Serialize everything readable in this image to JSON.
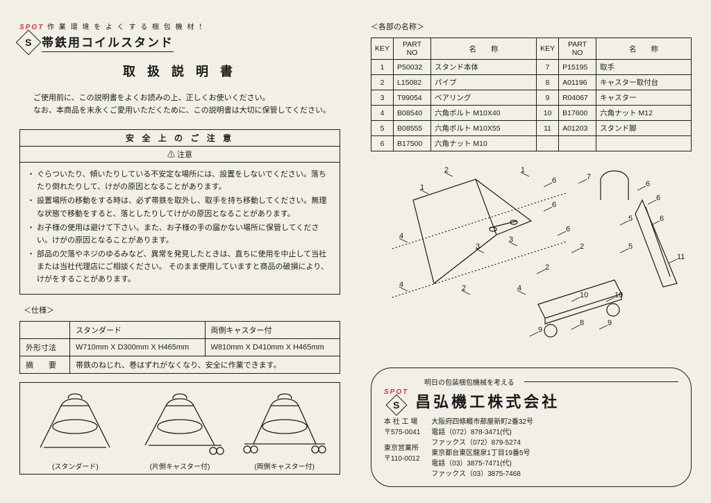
{
  "left": {
    "spot_label": "SPOT",
    "spot_tagline": "作 業 環 境 を よ く す る 梱 包 機 材 ！",
    "logo_letter": "S",
    "product_title": "帯鉄用コイルスタンド",
    "manual_title": "取 扱 説 明 書",
    "intro_line1": "ご使用前に、この説明書をよくお読みの上、正しくお使いください。",
    "intro_line2": "なお、本商品を末永くご愛用いただくために、この説明書は大切に保管してください。",
    "safety_header": "安 全 上 の ご 注 意",
    "safety_sub": "⚠ 注意",
    "safety_items": [
      "ぐらついたり、傾いたりしている不安定な場所には、設置をしないでください。落ちたり倒れたりして、けがの原因となることがあります。",
      "設置場所の移動をする時は、必ず帯鉄を取外し、取手を持ち移動してください。無理な状態で移動をすると、落としたりしてけがの原因となることがあります。",
      "お子様の使用は避けて下さい。また、お子様の手の届かない場所に保管してください。けがの原因となることがあります。",
      "部品の欠落やネジのゆるみなど、異常を発見したときは、直ちに使用を中止して当社または当社代理店にご相談ください。\nそのまま使用していますと商品の破損により、けがをすることがあります。"
    ],
    "spec_label": "＜仕様＞",
    "spec": {
      "cols": [
        "",
        "スタンダード",
        "両側キャスター付"
      ],
      "row1": [
        "外形寸法",
        "W710mm X D300mm X H465mm",
        "W810mm X D410mm X H465mm"
      ],
      "row2": [
        "摘　　要",
        "帯鉄のねじれ、巻はずれがなくなり、安全に作業できます。"
      ]
    },
    "variants": [
      "(スタンダード)",
      "(片側キャスター付)",
      "(両側キャスター付)"
    ]
  },
  "right": {
    "parts_label": "＜各部の名称＞",
    "parts_headers": [
      "KEY",
      "PART NO",
      "名　　称",
      "KEY",
      "PART NO",
      "名　　称"
    ],
    "parts_rows": [
      [
        "1",
        "P50032",
        "スタンド本体",
        "7",
        "P15195",
        "取手"
      ],
      [
        "2",
        "L15082",
        "パイプ",
        "8",
        "A01196",
        "キャスター取付台"
      ],
      [
        "3",
        "T99054",
        "ベアリング",
        "9",
        "R04067",
        "キャスター"
      ],
      [
        "4",
        "B08540",
        "六角ボルト M10X40",
        "10",
        "B17600",
        "六角ナット M12"
      ],
      [
        "5",
        "B08555",
        "六角ボルト M10X55",
        "11",
        "A01203",
        "スタンド脚"
      ],
      [
        "6",
        "B17500",
        "六角ナット M10",
        "",
        "",
        ""
      ]
    ],
    "diagram_labels": [
      "1",
      "2",
      "3",
      "4",
      "5",
      "6",
      "7",
      "8",
      "9",
      "10",
      "11"
    ],
    "company": {
      "spot": "SPOT",
      "slogan": "明日の包装梱包機械を考える",
      "logo_letter": "S",
      "name": "昌弘機工株式会社",
      "office1_label": "本 社 工 場",
      "office1_zip": "〒575-0041",
      "office1_addr": "大阪府四條畷市蔀屋新町2番32号",
      "office1_tel": "電話（072）878-3471(代)",
      "office1_fax": "ファックス（072）879-5274",
      "office2_label": "東京営業所",
      "office2_zip": "〒110-0012",
      "office2_addr": "東京都台東区龍泉1丁目19番5号",
      "office2_tel": "電話（03）3875-7471(代)",
      "office2_fax": "ファックス（03）3875-7468"
    }
  },
  "colors": {
    "text": "#1a1a1a",
    "bg": "#f2f0e6",
    "red": "#c43a3a"
  }
}
